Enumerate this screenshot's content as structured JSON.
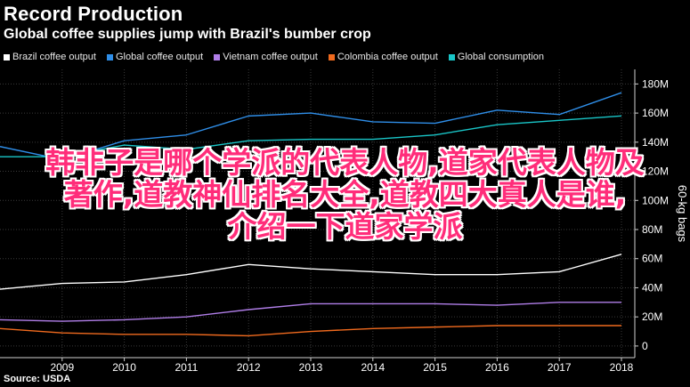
{
  "header": {
    "title": "Record Production",
    "subtitle": "Global coffee supplies jump with Brazil's bumber crop"
  },
  "source": "Source: USDA",
  "overlay": {
    "lines": [
      "韩非子是哪个学派的代表人物,道家代表人物及",
      "著作,道教神仙排名大全,道教四大真人是谁,",
      "介绍一下道家学派"
    ],
    "color": "#ff2d7a"
  },
  "chart_data": {
    "type": "line",
    "title": "Record Production",
    "subtitle": "Global coffee supplies jump with Brazil's bumber crop",
    "ylabel": "60-kg bags",
    "x": [
      2008,
      2009,
      2010,
      2011,
      2012,
      2013,
      2014,
      2015,
      2016,
      2017,
      2018
    ],
    "xticks": [
      "2009",
      "2010",
      "2011",
      "2012",
      "2013",
      "2014",
      "2015",
      "2016",
      "2017",
      "2018"
    ],
    "ylim": [
      -8,
      190
    ],
    "yticks": [
      0,
      20,
      40,
      60,
      80,
      100,
      120,
      140,
      160,
      180
    ],
    "ytick_labels": [
      "0",
      "20M",
      "40M",
      "60M",
      "80M",
      "100M",
      "120M",
      "140M",
      "160M",
      "180M"
    ],
    "y_axis_side": "right",
    "legend_position": "top",
    "grid": true,
    "series": [
      {
        "name": "Brazil coffee output",
        "color": "#ffffff",
        "values": [
          39,
          43,
          44,
          49,
          56,
          53,
          51,
          49,
          49,
          51,
          63
        ]
      },
      {
        "name": "Global coffee output",
        "color": "#2f8ee8",
        "values": [
          137,
          128,
          141,
          145,
          158,
          160,
          154,
          153,
          162,
          159,
          174
        ]
      },
      {
        "name": "Vietnam coffee output",
        "color": "#b07ee8",
        "values": [
          18,
          17,
          18,
          20,
          25,
          29,
          29,
          29,
          28,
          30,
          30
        ]
      },
      {
        "name": "Colombia coffee output",
        "color": "#f06a1e",
        "values": [
          12,
          9,
          8,
          8,
          7,
          10,
          12,
          13,
          14,
          14,
          14
        ]
      },
      {
        "name": "Global consumption",
        "color": "#19c6c8",
        "values": [
          130,
          130,
          138,
          135,
          141,
          142,
          142,
          145,
          152,
          155,
          158
        ]
      }
    ]
  }
}
